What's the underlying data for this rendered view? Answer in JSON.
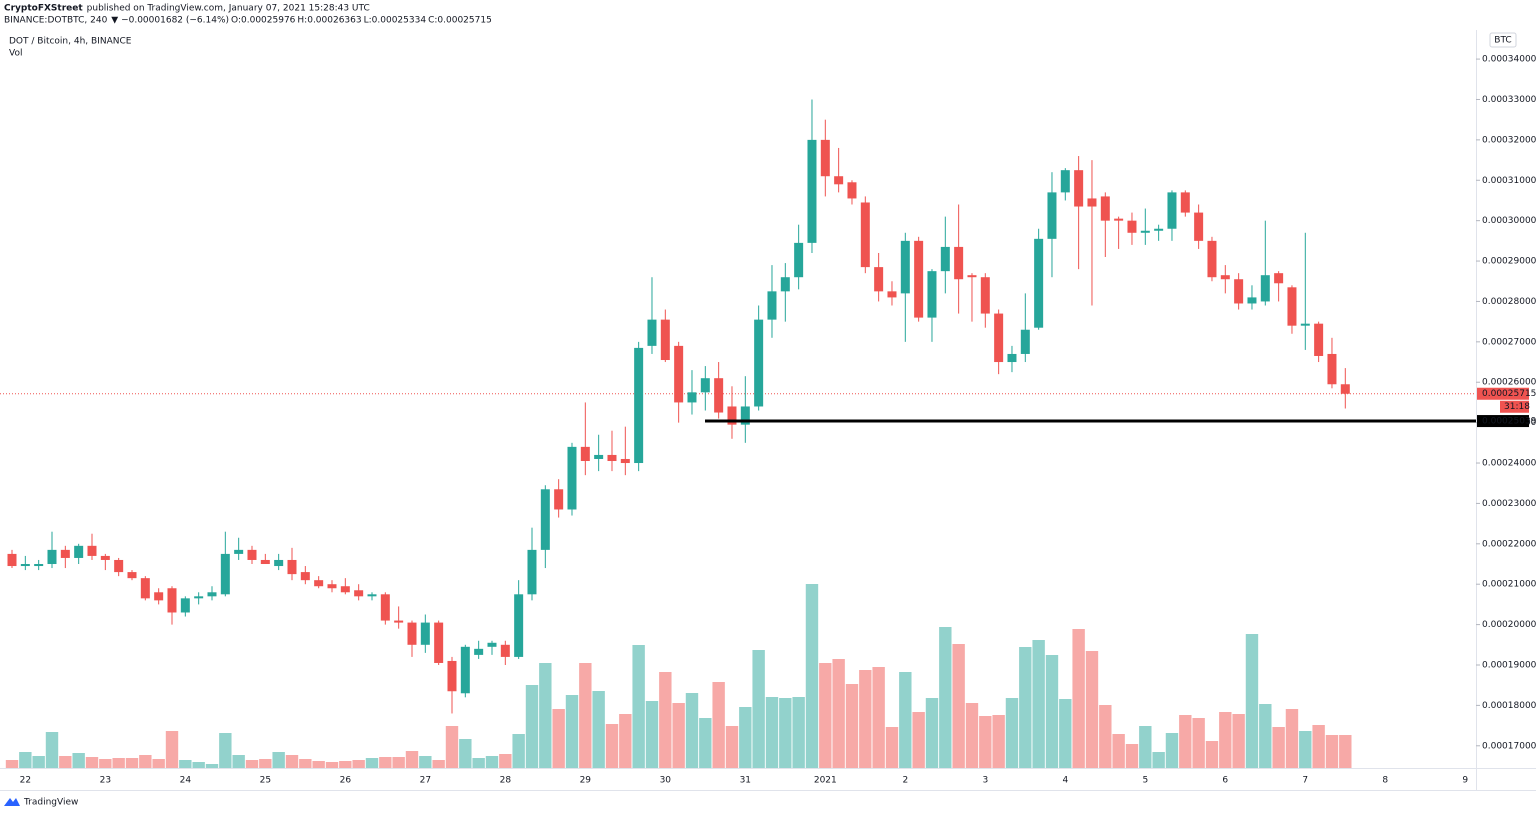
{
  "chart_data": {
    "type": "candlestick",
    "header": {
      "author": "CryptoFXStreet",
      "text": "published on TradingView.com, January 07, 2021 15:28:43 UTC"
    },
    "symbol": "BINANCE:DOTBTC, 240",
    "change": "▼ −0.00001682 (−6.14%)",
    "ohlc": [
      {
        "key": "O:",
        "value": "0.00025976"
      },
      {
        "key": "H:",
        "value": "0.00026363"
      },
      {
        "key": "L:",
        "value": "0.00025334"
      },
      {
        "key": "C:",
        "value": "0.00025715"
      }
    ],
    "title": "DOT / Bitcoin, 4h, BINANCE",
    "volume_label": "Vol",
    "currency": "BTC",
    "categories": [
      null,
      "22",
      null,
      null,
      null,
      null,
      null,
      "23",
      null,
      null,
      null,
      null,
      null,
      "24",
      null,
      null,
      null,
      null,
      null,
      "25",
      null,
      null,
      null,
      null,
      null,
      "26",
      null,
      null,
      null,
      null,
      null,
      "27",
      null,
      null,
      null,
      null,
      null,
      "28",
      null,
      null,
      null,
      null,
      null,
      "29",
      null,
      null,
      null,
      null,
      null,
      "30",
      null,
      null,
      null,
      null,
      null,
      "31",
      null,
      null,
      null,
      null,
      null,
      "2021",
      null,
      null,
      null,
      null,
      null,
      "2",
      null,
      null,
      null,
      null,
      null,
      "3",
      null,
      null,
      null,
      null,
      null,
      "4",
      null,
      null,
      null,
      null,
      null,
      "5",
      null,
      null,
      null,
      null,
      null,
      "6",
      null,
      null,
      null,
      null,
      null,
      "7",
      null,
      null,
      null,
      null,
      null,
      "8",
      null,
      null,
      null,
      null,
      null,
      "9"
    ],
    "open": [
      0.0002175,
      0.0002145,
      0.0002145,
      0.000215,
      0.0002185,
      0.0002165,
      0.0002195,
      0.000217,
      0.000216,
      0.000213,
      0.0002115,
      0.000208,
      0.000209,
      0.000203,
      0.0002065,
      0.000207,
      0.0002075,
      0.0002175,
      0.0002185,
      0.000216,
      0.0002145,
      0.000216,
      0.000213,
      0.000211,
      0.00021,
      0.0002095,
      0.0002085,
      0.000207,
      0.0002075,
      0.000201,
      0.0002005,
      0.000195,
      0.0002005,
      0.000191,
      0.000183,
      0.0001925,
      0.0001945,
      0.000195,
      0.000192,
      0.0002075,
      0.0002185,
      0.0002335,
      0.0002285,
      0.000244,
      0.000241,
      0.000242,
      0.000241,
      0.00024,
      0.000269,
      0.0002755,
      0.000269,
      0.000255,
      0.0002575,
      0.000261,
      0.000254,
      0.0002495,
      0.000254,
      0.0002755,
      0.0002825,
      0.000286,
      0.0002945,
      0.00032,
      0.000311,
      0.0003095,
      0.0003045,
      0.0002885,
      0.0002825,
      0.000282,
      0.000295,
      0.000276,
      0.0002875,
      0.0002935,
      0.0002865,
      0.000286,
      0.000277,
      0.000265,
      0.000267,
      0.0002735,
      0.0002955,
      0.000307,
      0.0003125,
      0.0003055,
      0.000306,
      0.0003005,
      0.0003,
      0.000297,
      0.0002975,
      0.000298,
      0.000307,
      0.000302,
      0.000295,
      0.0002865,
      0.0002855,
      0.0002795,
      0.00028,
      0.000287,
      0.0002835,
      0.000274,
      0.0002745,
      0.000267,
      0.0002595,
      null,
      null,
      null,
      null,
      null,
      null,
      null,
      null,
      null
    ],
    "high": [
      0.0002185,
      0.000217,
      0.000216,
      0.000223,
      0.0002195,
      0.00022,
      0.0002225,
      0.0002175,
      0.0002165,
      0.0002135,
      0.000212,
      0.000209,
      0.0002095,
      0.000207,
      0.000208,
      0.0002095,
      0.000223,
      0.0002215,
      0.0002195,
      0.0002175,
      0.0002175,
      0.000219,
      0.0002145,
      0.000212,
      0.000211,
      0.0002115,
      0.00021,
      0.000208,
      0.000208,
      0.0002045,
      0.000201,
      0.0002025,
      0.000201,
      0.000192,
      0.000195,
      0.000196,
      0.000196,
      0.000196,
      0.000211,
      0.000224,
      0.0002345,
      0.000236,
      0.000245,
      0.000255,
      0.000247,
      0.000248,
      0.000249,
      0.00027,
      0.000286,
      0.000278,
      0.00027,
      0.000263,
      0.000264,
      0.000265,
      0.000259,
      0.0002615,
      0.000279,
      0.000289,
      0.0002895,
      0.000299,
      0.00033,
      0.000325,
      0.000318,
      0.00031,
      0.000306,
      0.000292,
      0.000285,
      0.000297,
      0.000296,
      0.000288,
      0.000301,
      0.000304,
      0.000287,
      0.000287,
      0.000278,
      0.000269,
      0.000282,
      0.000298,
      0.000312,
      0.000313,
      0.000316,
      0.000315,
      0.000307,
      0.000301,
      0.000302,
      0.000303,
      0.000299,
      0.0003075,
      0.0003075,
      0.000304,
      0.000296,
      0.000289,
      0.000287,
      0.000284,
      0.0003,
      0.0002875,
      0.000284,
      0.000297,
      0.000275,
      0.000271,
      0.0002635,
      null,
      null,
      null,
      null,
      null,
      null,
      null,
      null,
      null
    ],
    "low": [
      0.000214,
      0.0002135,
      0.0002135,
      0.000214,
      0.000214,
      0.000215,
      0.000216,
      0.0002135,
      0.000212,
      0.000211,
      0.000206,
      0.000205,
      0.0002,
      0.000202,
      0.000205,
      0.000206,
      0.000207,
      0.000216,
      0.000215,
      0.000215,
      0.0002135,
      0.000211,
      0.00021,
      0.000209,
      0.000208,
      0.0002075,
      0.000206,
      0.000206,
      0.0002,
      0.000199,
      0.000192,
      0.000193,
      0.00019,
      0.000178,
      0.000182,
      0.0001915,
      0.0001925,
      0.00019,
      0.0001915,
      0.000206,
      0.000214,
      0.0002265,
      0.000227,
      0.000237,
      0.000238,
      0.000238,
      0.000237,
      0.000238,
      0.000267,
      0.000265,
      0.00025,
      0.000252,
      0.000253,
      0.000251,
      0.000246,
      0.000245,
      0.000253,
      0.000271,
      0.000275,
      0.000283,
      0.000292,
      0.000306,
      0.000307,
      0.000304,
      0.000287,
      0.00028,
      0.000279,
      0.00027,
      0.000275,
      0.00027,
      0.000282,
      0.000277,
      0.000275,
      0.0002735,
      0.000262,
      0.0002625,
      0.000265,
      0.000273,
      0.000286,
      0.000305,
      0.000288,
      0.000279,
      0.000291,
      0.000293,
      0.000294,
      0.000294,
      0.000295,
      0.000295,
      0.000301,
      0.000293,
      0.000285,
      0.000282,
      0.000278,
      0.000278,
      0.000279,
      0.00028,
      0.000272,
      0.000268,
      0.000265,
      0.0002585,
      0.0002535,
      null,
      null,
      null,
      null,
      null,
      null,
      null,
      null,
      null
    ],
    "close": [
      0.0002145,
      0.000215,
      0.000215,
      0.0002185,
      0.0002165,
      0.0002195,
      0.000217,
      0.000216,
      0.000213,
      0.0002115,
      0.0002065,
      0.000206,
      0.000203,
      0.0002065,
      0.000207,
      0.000208,
      0.0002175,
      0.0002185,
      0.000216,
      0.000215,
      0.000216,
      0.0002125,
      0.000211,
      0.0002095,
      0.000209,
      0.000208,
      0.000207,
      0.0002075,
      0.000201,
      0.0002005,
      0.000195,
      0.0002005,
      0.0001905,
      0.0001835,
      0.0001945,
      0.000194,
      0.0001955,
      0.000192,
      0.0002075,
      0.0002185,
      0.0002335,
      0.0002285,
      0.000244,
      0.0002405,
      0.000242,
      0.0002405,
      0.00024,
      0.0002685,
      0.0002755,
      0.0002655,
      0.000255,
      0.0002575,
      0.000261,
      0.0002525,
      0.0002495,
      0.000254,
      0.0002755,
      0.0002825,
      0.000286,
      0.0002945,
      0.00032,
      0.000311,
      0.000309,
      0.0003055,
      0.0002885,
      0.0002825,
      0.000281,
      0.000295,
      0.000276,
      0.0002875,
      0.0002935,
      0.0002855,
      0.000286,
      0.000277,
      0.000265,
      0.000267,
      0.000273,
      0.0002955,
      0.000307,
      0.0003125,
      0.0003035,
      0.0003035,
      0.0003,
      0.0003,
      0.000297,
      0.0002975,
      0.000298,
      0.000307,
      0.000302,
      0.000295,
      0.000286,
      0.0002855,
      0.0002795,
      0.000281,
      0.0002865,
      0.0002845,
      0.000274,
      0.0002745,
      0.0002665,
      0.0002595,
      0.00025715,
      null,
      null,
      null,
      null,
      null,
      null,
      null,
      null,
      null
    ],
    "volume": [
      8,
      16,
      12,
      36,
      12,
      15,
      11,
      9,
      10,
      10,
      13,
      9,
      37,
      8,
      6,
      4,
      35,
      13,
      8,
      9,
      16,
      13,
      9,
      7,
      6,
      7,
      8,
      10,
      11,
      11,
      17,
      12,
      8,
      42,
      29,
      10,
      12,
      14,
      34,
      83,
      105,
      59,
      73,
      105,
      77,
      44,
      54,
      123,
      67,
      96,
      65,
      75,
      50,
      86,
      42,
      61,
      118,
      71,
      70,
      71,
      184,
      105,
      109,
      84,
      98,
      101,
      41,
      96,
      56,
      70,
      141,
      124,
      65,
      52,
      53,
      70,
      121,
      128,
      113,
      69,
      139,
      117,
      63,
      34,
      24,
      42,
      16,
      35,
      53,
      50,
      27,
      56,
      54,
      134,
      64,
      41,
      59,
      37,
      43,
      33,
      33,
      null,
      null,
      null,
      null,
      null,
      null,
      null,
      null,
      null
    ],
    "up_color": "#26a69a",
    "down_color": "#ef5350",
    "ylim": [
      0.0001645,
      0.0003472
    ],
    "yticks": [
      {
        "value": 0.00017,
        "label": "0.00017000"
      },
      {
        "value": 0.00018,
        "label": "0.00018000"
      },
      {
        "value": 0.00019,
        "label": "0.00019000"
      },
      {
        "value": 0.0002,
        "label": "0.00020000"
      },
      {
        "value": 0.00021,
        "label": "0.00021000"
      },
      {
        "value": 0.00022,
        "label": "0.00022000"
      },
      {
        "value": 0.00023,
        "label": "0.00023000"
      },
      {
        "value": 0.00024,
        "label": "0.00024000"
      },
      {
        "value": 0.00025,
        "label": "0.00025000"
      },
      {
        "value": 0.00026,
        "label": "0.00026000"
      },
      {
        "value": 0.00027,
        "label": "0.00027000"
      },
      {
        "value": 0.00028,
        "label": "0.00028000"
      },
      {
        "value": 0.00029,
        "label": "0.00029000"
      },
      {
        "value": 0.0003,
        "label": "0.00030000"
      },
      {
        "value": 0.00031,
        "label": "0.00031000"
      },
      {
        "value": 0.00032,
        "label": "0.00032000"
      },
      {
        "value": 0.00033,
        "label": "0.00033000"
      },
      {
        "value": 0.00034,
        "label": "0.00034000"
      }
    ],
    "last_price": {
      "value": 0.00025715,
      "label": "0.00025715"
    },
    "countdown": "31:18",
    "support": {
      "value": 0.00025039,
      "label": "0.00025039"
    },
    "footer": "TradingView"
  }
}
